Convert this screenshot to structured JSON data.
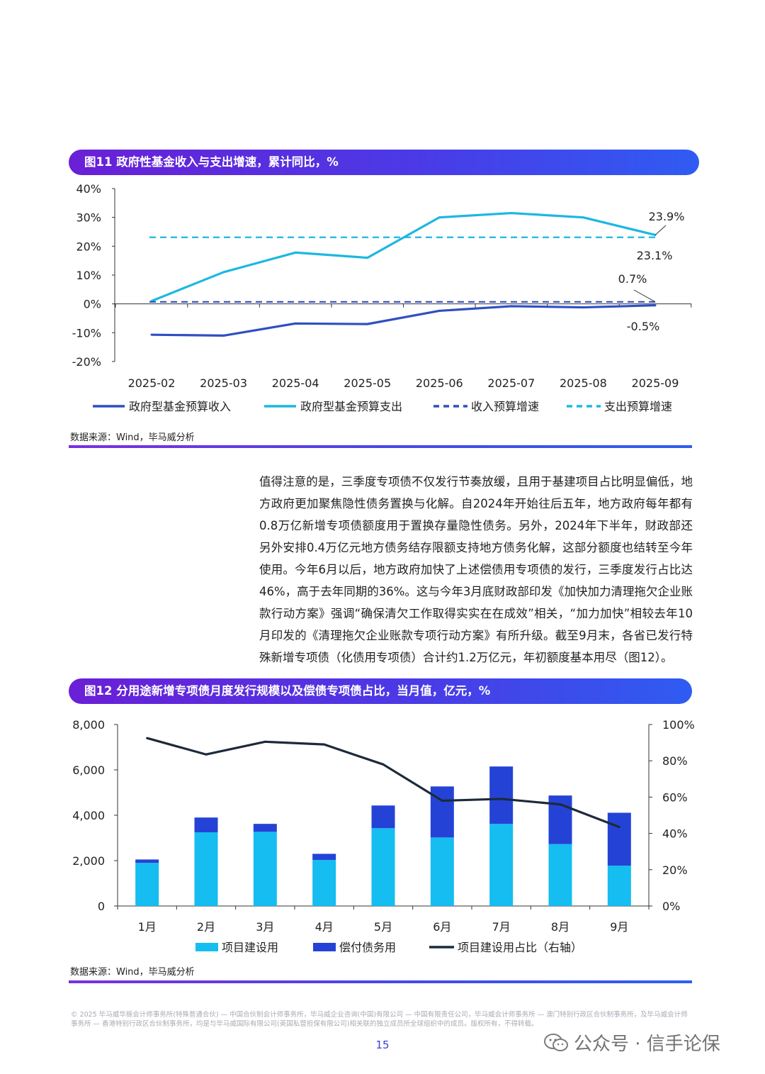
{
  "figure11": {
    "title": "图11 政府性基金收入与支出增速，累计同比，%",
    "source": "数据来源：Wind，毕马威分析"
  },
  "figure12": {
    "title": "图12 分用途新增专项债月度发行规模以及偿债专项债占比，当月值，亿元，%",
    "source": "数据来源：Wind，毕马威分析"
  },
  "body_text": "值得注意的是，三季度专项债不仅发行节奏放缓，且用于基建项目占比明显偏低，地方政府更加聚焦隐性债务置换与化解。自2024年开始往后五年，地方政府每年都有0.8万亿新增专项债额度用于置换存量隐性债务。另外，2024年下半年，财政部还另外安排0.4万亿元地方债务结存限额支持地方债务化解，这部分额度也结转至今年使用。今年6月以后，地方政府加快了上述偿债用专项债的发行，三季度发行占比达46%，高于去年同期的36%。这与今年3月底财政部印发《加快加力清理拖欠企业账款行动方案》强调“确保清欠工作取得实实在在成效”相关，“加力加快”相较去年10月印发的《清理拖欠企业账款专项行动方案》有所升级。截至9月末，各省已发行特殊新增专项债（化债用专项债）合计约1.2万亿元，年初额度基本用尽（图12）。",
  "footer": {
    "copyright": "© 2025 毕马威华振会计师事务所(特殊普通合伙) — 中国合伙制会计师事务所，毕马威企业咨询(中国)有限公司 — 中国有限责任公司，毕马威会计师事务所 — 澳门特别行政区合伙制事务所，及毕马威会计师事务所 — 香港特别行政区合伙制事务所，均是与毕马威国际有限公司(英国私营担保有限公司)相关联的独立成员所全球组织中的成员。版权所有，不得转载。",
    "page_number": "15",
    "watermark": "公众号 · 信手论保"
  },
  "chart_data": [
    {
      "type": "line",
      "title": "图11 政府性基金收入与支出增速，累计同比，%",
      "x": [
        "2025-02",
        "2025-03",
        "2025-04",
        "2025-05",
        "2025-06",
        "2025-07",
        "2025-08",
        "2025-09"
      ],
      "ylim": [
        -20,
        40
      ],
      "yticks": [
        "40%",
        "30%",
        "20%",
        "10%",
        "0%",
        "-10%",
        "-20%"
      ],
      "ytick_values": [
        40,
        30,
        20,
        10,
        0,
        -10,
        -20
      ],
      "series": [
        {
          "name": "政府型基金预算收入",
          "style": "solid",
          "color": "#2f4fc2",
          "values": [
            -10.7,
            -11.0,
            -6.8,
            -7.0,
            -2.4,
            -0.8,
            -1.2,
            -0.5
          ]
        },
        {
          "name": "政府型基金预算支出",
          "style": "solid",
          "color": "#1bb8e0",
          "values": [
            1.0,
            11.0,
            17.8,
            16.0,
            30.0,
            31.5,
            30.0,
            23.9
          ]
        },
        {
          "name": "收入预算增速",
          "style": "dashed",
          "color": "#2f4fc2",
          "constant": 0.7
        },
        {
          "name": "支出预算增速",
          "style": "dashed",
          "color": "#1bb8e0",
          "constant": 23.1
        }
      ],
      "annotations": [
        "23.9%",
        "23.1%",
        "0.7%",
        "-0.5%"
      ]
    },
    {
      "type": "bar",
      "title": "图12 分用途新增专项债月度发行规模以及偿债专项债占比，当月值，亿元，%",
      "categories": [
        "1月",
        "2月",
        "3月",
        "4月",
        "5月",
        "6月",
        "7月",
        "8月",
        "9月"
      ],
      "ylim": [
        0,
        8000
      ],
      "yticks": [
        "8,000",
        "6,000",
        "4,000",
        "2,000",
        "0"
      ],
      "ytick_values": [
        8000,
        6000,
        4000,
        2000,
        0
      ],
      "y2lim": [
        0,
        100
      ],
      "y2ticks": [
        "100%",
        "80%",
        "60%",
        "40%",
        "20%",
        "0%"
      ],
      "y2tick_values": [
        100,
        80,
        60,
        40,
        20,
        0
      ],
      "series": [
        {
          "name": "项目建设用",
          "kind": "bar-stack",
          "color": "#15bdf0",
          "values": [
            1900,
            3250,
            3270,
            2030,
            3430,
            3020,
            3620,
            2730,
            1780
          ]
        },
        {
          "name": "偿付债务用",
          "kind": "bar-stack",
          "color": "#2443d6",
          "values": [
            150,
            650,
            350,
            270,
            1000,
            2250,
            2530,
            2140,
            2330
          ]
        },
        {
          "name": "项目建设用占比（右轴）",
          "kind": "line",
          "axis": "right",
          "color": "#1c2a3a",
          "values": [
            92.5,
            83.5,
            90.5,
            89,
            78,
            58,
            59,
            56,
            43.5
          ]
        }
      ]
    }
  ]
}
